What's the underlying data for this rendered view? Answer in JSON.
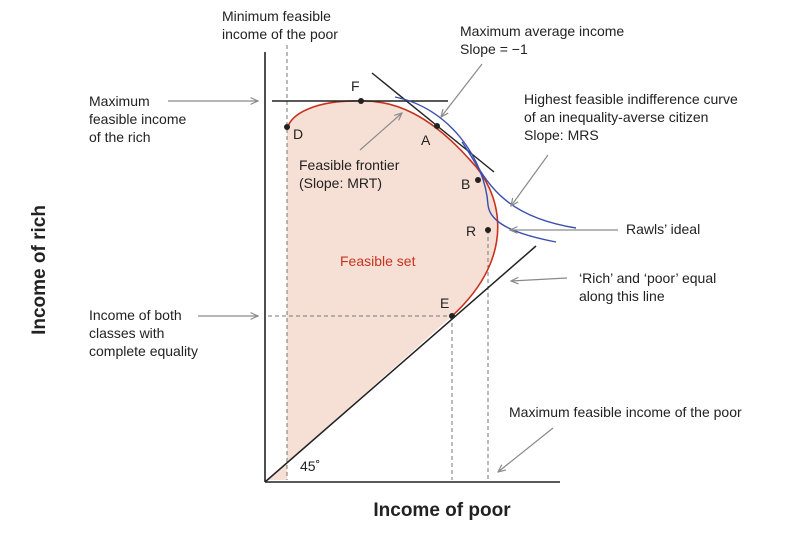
{
  "colors": {
    "frontier": "#c8321e",
    "feasible_fill": "#f6e0d5",
    "indifference": "#3b4fae",
    "axis": "#222222",
    "guide_dash": "#777777",
    "arrow": "#8a8a8a",
    "feasible_text": "#c8321e"
  },
  "axes": {
    "x_title": "Income of poor",
    "y_title": "Income of rich",
    "angle_label": "45˚"
  },
  "points": {
    "F": "F",
    "D": "D",
    "A": "A",
    "B": "B",
    "R": "R",
    "E": "E"
  },
  "region": {
    "feasible_set": "Feasible set"
  },
  "annotations": {
    "min_feasible_poor": [
      "Minimum feasible",
      "income of the poor"
    ],
    "max_average": [
      "Maximum average income",
      "Slope = −1"
    ],
    "max_feasible_rich": [
      "Maximum",
      "feasible income",
      "of the rich"
    ],
    "highest_indiff": [
      "Highest feasible indifference curve",
      "of an inequality-averse citizen",
      "Slope: MRS"
    ],
    "frontier": [
      "Feasible frontier",
      "(Slope: MRT)"
    ],
    "rawls": "Rawls’ ideal",
    "equal_line": [
      "‘Rich’ and ‘poor’ equal",
      "along this line"
    ],
    "equality_income": [
      "Income of both",
      "classes with",
      "complete equality"
    ],
    "max_feasible_poor": "Maximum feasible income of the poor"
  }
}
